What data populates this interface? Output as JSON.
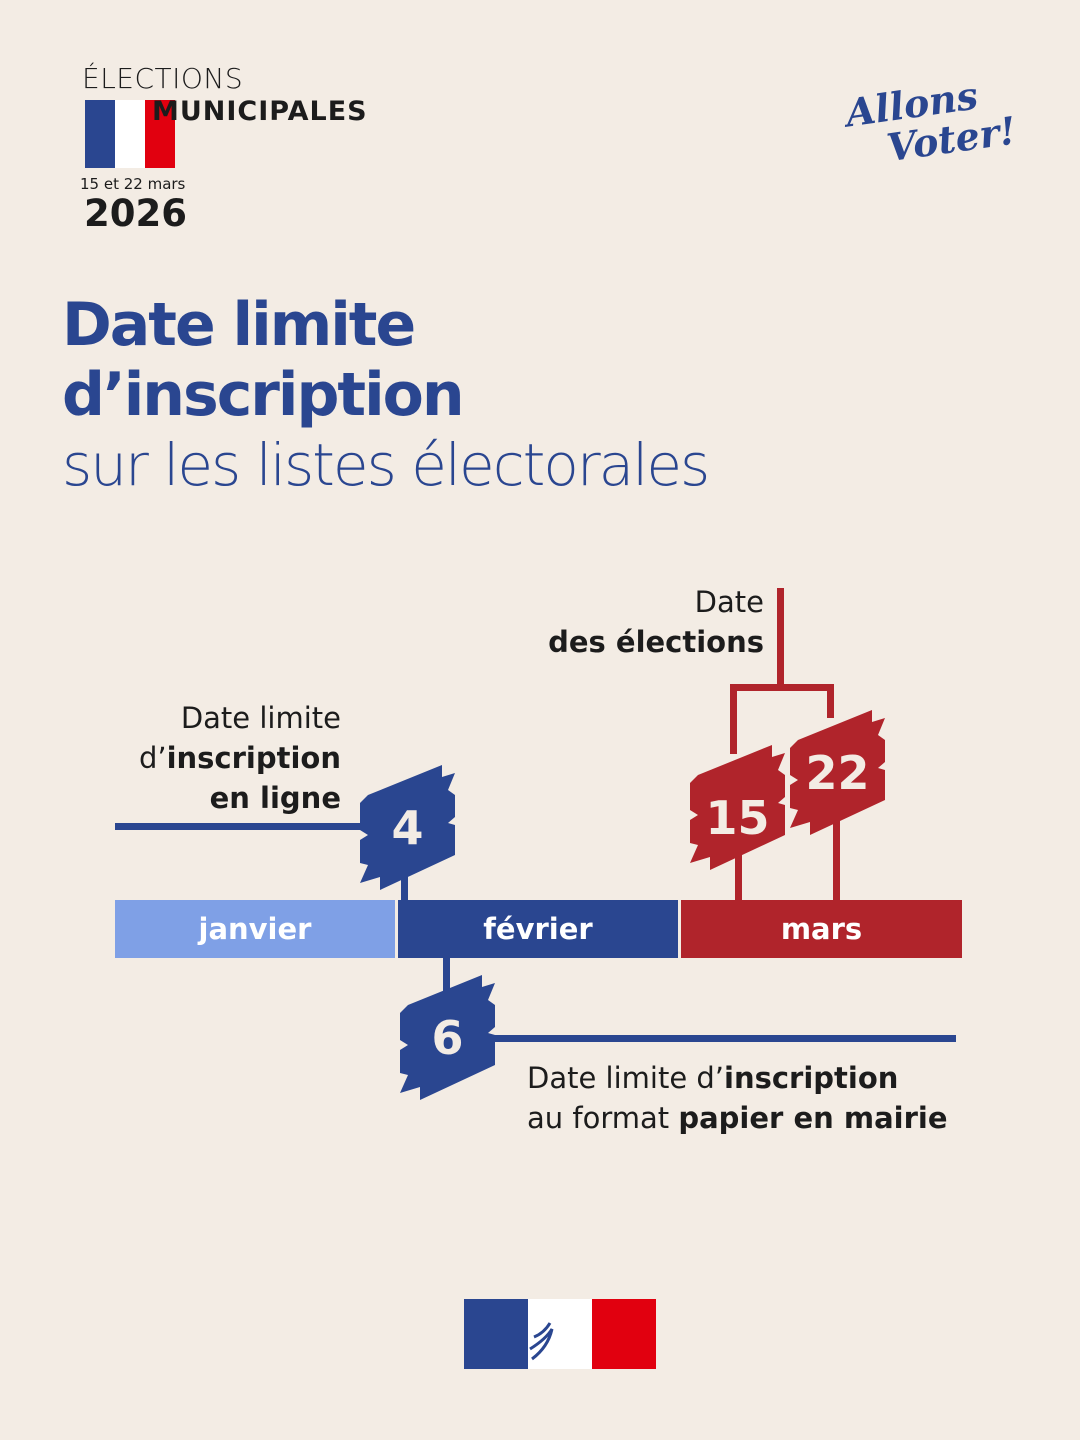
{
  "header": {
    "line1": "ÉLECTIONS",
    "line2": "MUNICIPALES",
    "dates": "15 et 22 mars",
    "year": "2026"
  },
  "slogan": {
    "line1": "Allons",
    "line2": "Voter!"
  },
  "title": {
    "line1": "Date limite",
    "line2": "d’inscription",
    "line3": "sur les listes électorales"
  },
  "timeline": {
    "months": [
      {
        "label": "janvier",
        "color": "#7fa0e6"
      },
      {
        "label": "février",
        "color": "#2a4690"
      },
      {
        "label": "mars",
        "color": "#b0242b"
      }
    ],
    "online": {
      "day": "4",
      "t1": "Date limite",
      "t2a": "d’",
      "t2b": "inscription",
      "t3": "en ligne"
    },
    "paper": {
      "day": "6",
      "t1a": "Date limite d’",
      "t1b": "inscription",
      "t2a": "au format ",
      "t2b": "papier en mairie"
    },
    "elections": {
      "day1": "15",
      "day2": "22",
      "t1": "Date",
      "t2": "des élections"
    }
  },
  "colors": {
    "background": "#f3ece4",
    "blue": "#2a4690",
    "light_blue": "#7fa0e6",
    "red": "#b0242b"
  },
  "footer": {
    "logo": "marianne-logo"
  }
}
